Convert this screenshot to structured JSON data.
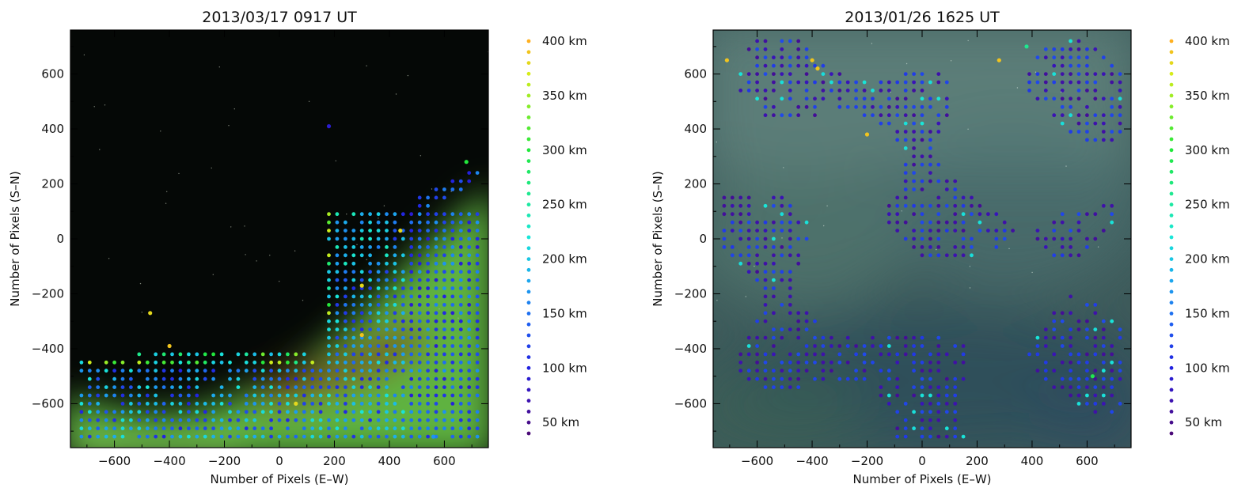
{
  "chart_data": [
    {
      "type": "scatter",
      "title": "2013/03/17 0917 UT",
      "xlabel": "Number of Pixels (E–W)",
      "ylabel": "Number of Pixels (S–N)",
      "xlim": [
        -760,
        760
      ],
      "ylim": [
        -760,
        760
      ],
      "xticks": [
        "−600",
        "−400",
        "−200",
        "0",
        "200",
        "400",
        "600"
      ],
      "yticks": [
        "−600",
        "−400",
        "−200",
        "0",
        "200",
        "400",
        "600"
      ],
      "xtick_values": [
        -600,
        -400,
        -200,
        0,
        200,
        400,
        600
      ],
      "ytick_values": [
        -600,
        -400,
        -200,
        0,
        200,
        400,
        600
      ],
      "background": "night sky with green aurora along bottom-right",
      "points_altitude_km_sample": [
        {
          "x": 180,
          "y": 410,
          "alt": 90
        },
        {
          "x": 680,
          "y": 280,
          "alt": 300
        },
        {
          "x": 440,
          "y": 30,
          "alt": 380
        },
        {
          "x": -470,
          "y": -270,
          "alt": 380
        },
        {
          "x": -400,
          "y": -390,
          "alt": 390
        },
        {
          "x": 300,
          "y": -170,
          "alt": 380
        },
        {
          "x": 300,
          "y": -350,
          "alt": 390
        },
        {
          "x": 60,
          "y": -600,
          "alt": 380
        },
        {
          "x": 560,
          "y": -720,
          "alt": 170
        }
      ]
    },
    {
      "type": "scatter",
      "title": "2013/01/26 1625 UT",
      "xlabel": "Number of Pixels (E–W)",
      "ylabel": "Number of Pixels (S–N)",
      "xlim": [
        -760,
        760
      ],
      "ylim": [
        -760,
        760
      ],
      "xticks": [
        "−600",
        "−400",
        "−200",
        "0",
        "200",
        "400",
        "600"
      ],
      "yticks": [
        "−600",
        "−400",
        "−200",
        "0",
        "200",
        "400",
        "600"
      ],
      "xtick_values": [
        -600,
        -400,
        -200,
        0,
        200,
        400,
        600
      ],
      "ytick_values": [
        -600,
        -400,
        -200,
        0,
        200,
        400,
        600
      ],
      "background": "overcast grey-green sky",
      "points_altitude_km_sample": [
        {
          "x": -710,
          "y": 650,
          "alt": 390
        },
        {
          "x": -400,
          "y": 650,
          "alt": 390
        },
        {
          "x": -380,
          "y": 620,
          "alt": 390
        },
        {
          "x": 280,
          "y": 650,
          "alt": 390
        },
        {
          "x": -200,
          "y": 380,
          "alt": 390
        },
        {
          "x": 380,
          "y": 700,
          "alt": 260
        },
        {
          "x": 620,
          "y": -500,
          "alt": 290
        }
      ]
    }
  ],
  "colorbar": {
    "labels": [
      "400 km",
      "350 km",
      "300 km",
      "250 km",
      "200 km",
      "150 km",
      "100 km",
      "50 km"
    ],
    "values": [
      400,
      350,
      300,
      250,
      200,
      150,
      100,
      50
    ],
    "min": 40,
    "max": 400,
    "stops": [
      {
        "v": 40,
        "c": "#4b0a78"
      },
      {
        "v": 70,
        "c": "#3d12b0"
      },
      {
        "v": 100,
        "c": "#2222e0"
      },
      {
        "v": 140,
        "c": "#1f5ef0"
      },
      {
        "v": 180,
        "c": "#1ca6ee"
      },
      {
        "v": 220,
        "c": "#19e6d8"
      },
      {
        "v": 260,
        "c": "#1ee890"
      },
      {
        "v": 300,
        "c": "#22e83c"
      },
      {
        "v": 340,
        "c": "#86ec2a"
      },
      {
        "v": 370,
        "c": "#d6ec1a"
      },
      {
        "v": 400,
        "c": "#ffb020"
      }
    ]
  }
}
